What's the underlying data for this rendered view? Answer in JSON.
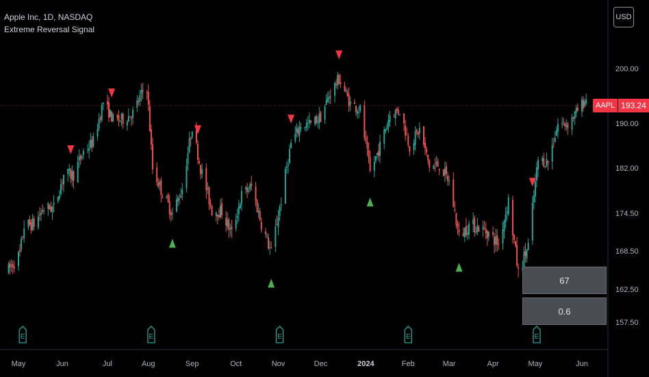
{
  "legend": {
    "symbol_line": "Apple Inc, 1D, NASDAQ",
    "indicator": "Extreme Reversal Signal"
  },
  "currency_button": "USD",
  "last_price": {
    "symbol": "AAPL",
    "value": "193.24"
  },
  "stats": {
    "box1": "67",
    "box2": "0.6"
  },
  "colors": {
    "up": "#26a69a",
    "down": "#ef5350",
    "signal_up": "#4caf50",
    "signal_down": "#f23645",
    "earnings": "#26a69a"
  },
  "chart_data": {
    "type": "candlestick",
    "y_ticks": [
      "200.00",
      "190.00",
      "182.00",
      "174.50",
      "168.50",
      "162.50",
      "157.50"
    ],
    "y_tick_values": [
      200,
      190,
      182,
      174.5,
      168.5,
      162.5,
      157.5
    ],
    "x_ticks": [
      {
        "label": "May",
        "date": "2023-05-01"
      },
      {
        "label": "Jun",
        "date": "2023-06-01"
      },
      {
        "label": "Jul",
        "date": "2023-07-03"
      },
      {
        "label": "Aug",
        "date": "2023-08-01"
      },
      {
        "label": "Sep",
        "date": "2023-09-01"
      },
      {
        "label": "Oct",
        "date": "2023-10-02"
      },
      {
        "label": "Nov",
        "date": "2023-11-01"
      },
      {
        "label": "Dec",
        "date": "2023-12-01"
      },
      {
        "label": "2024",
        "date": "2024-01-02",
        "bold": true
      },
      {
        "label": "Feb",
        "date": "2024-02-01"
      },
      {
        "label": "Mar",
        "date": "2024-03-01"
      },
      {
        "label": "Apr",
        "date": "2024-04-01"
      },
      {
        "label": "May",
        "date": "2024-05-01"
      },
      {
        "label": "Jun",
        "date": "2024-06-03"
      }
    ],
    "price_path": [
      [
        "2023-04-24",
        165.5
      ],
      [
        "2023-05-02",
        168.0
      ],
      [
        "2023-05-05",
        172.5
      ],
      [
        "2023-05-12",
        172.8
      ],
      [
        "2023-05-19",
        175.3
      ],
      [
        "2023-05-26",
        175.4
      ],
      [
        "2023-06-02",
        180.9
      ],
      [
        "2023-06-09",
        180.9
      ],
      [
        "2023-06-16",
        184.9
      ],
      [
        "2023-06-23",
        186.7
      ],
      [
        "2023-06-30",
        193.9
      ],
      [
        "2023-07-07",
        190.7
      ],
      [
        "2023-07-14",
        190.7
      ],
      [
        "2023-07-21",
        191.9
      ],
      [
        "2023-07-28",
        195.8
      ],
      [
        "2023-07-31",
        196.5
      ],
      [
        "2023-08-04",
        181.9
      ],
      [
        "2023-08-11",
        177.8
      ],
      [
        "2023-08-18",
        174.5
      ],
      [
        "2023-08-25",
        178.6
      ],
      [
        "2023-09-01",
        189.5
      ],
      [
        "2023-09-07",
        182.0
      ],
      [
        "2023-09-15",
        175.0
      ],
      [
        "2023-09-22",
        174.8
      ],
      [
        "2023-09-29",
        171.2
      ],
      [
        "2023-10-06",
        177.5
      ],
      [
        "2023-10-13",
        178.9
      ],
      [
        "2023-10-20",
        172.9
      ],
      [
        "2023-10-27",
        168.2
      ],
      [
        "2023-11-03",
        176.7
      ],
      [
        "2023-11-10",
        186.4
      ],
      [
        "2023-11-17",
        189.7
      ],
      [
        "2023-11-24",
        189.9
      ],
      [
        "2023-12-01",
        191.2
      ],
      [
        "2023-12-08",
        195.7
      ],
      [
        "2023-12-14",
        198.1
      ],
      [
        "2023-12-22",
        193.6
      ],
      [
        "2023-12-29",
        192.5
      ],
      [
        "2024-01-05",
        181.2
      ],
      [
        "2024-01-12",
        185.9
      ],
      [
        "2024-01-19",
        191.6
      ],
      [
        "2024-01-26",
        192.4
      ],
      [
        "2024-02-02",
        185.9
      ],
      [
        "2024-02-09",
        188.9
      ],
      [
        "2024-02-16",
        182.3
      ],
      [
        "2024-02-23",
        182.5
      ],
      [
        "2024-03-01",
        179.7
      ],
      [
        "2024-03-08",
        170.7
      ],
      [
        "2024-03-15",
        172.6
      ],
      [
        "2024-03-22",
        172.3
      ],
      [
        "2024-03-28",
        171.5
      ],
      [
        "2024-04-05",
        169.6
      ],
      [
        "2024-04-12",
        176.6
      ],
      [
        "2024-04-19",
        165.0
      ],
      [
        "2024-04-26",
        169.3
      ],
      [
        "2024-05-03",
        183.4
      ],
      [
        "2024-05-10",
        183.1
      ],
      [
        "2024-05-17",
        189.9
      ],
      [
        "2024-05-24",
        189.9
      ],
      [
        "2024-05-31",
        192.3
      ],
      [
        "2024-06-06",
        194.5
      ]
    ],
    "signals": [
      {
        "type": "sell",
        "date": "2023-06-07"
      },
      {
        "type": "sell",
        "date": "2023-07-06"
      },
      {
        "type": "sell",
        "date": "2023-09-05"
      },
      {
        "type": "sell",
        "date": "2023-11-10"
      },
      {
        "type": "sell",
        "date": "2023-12-14"
      },
      {
        "type": "sell",
        "date": "2024-04-29"
      },
      {
        "type": "buy",
        "date": "2023-08-18"
      },
      {
        "type": "buy",
        "date": "2023-10-27"
      },
      {
        "type": "buy",
        "date": "2024-01-05"
      },
      {
        "type": "buy",
        "date": "2024-03-08"
      }
    ],
    "earnings": [
      "2023-05-04",
      "2023-08-03",
      "2023-11-02",
      "2024-02-01",
      "2024-05-02"
    ],
    "earnings_label": "E",
    "last": 193.24
  }
}
